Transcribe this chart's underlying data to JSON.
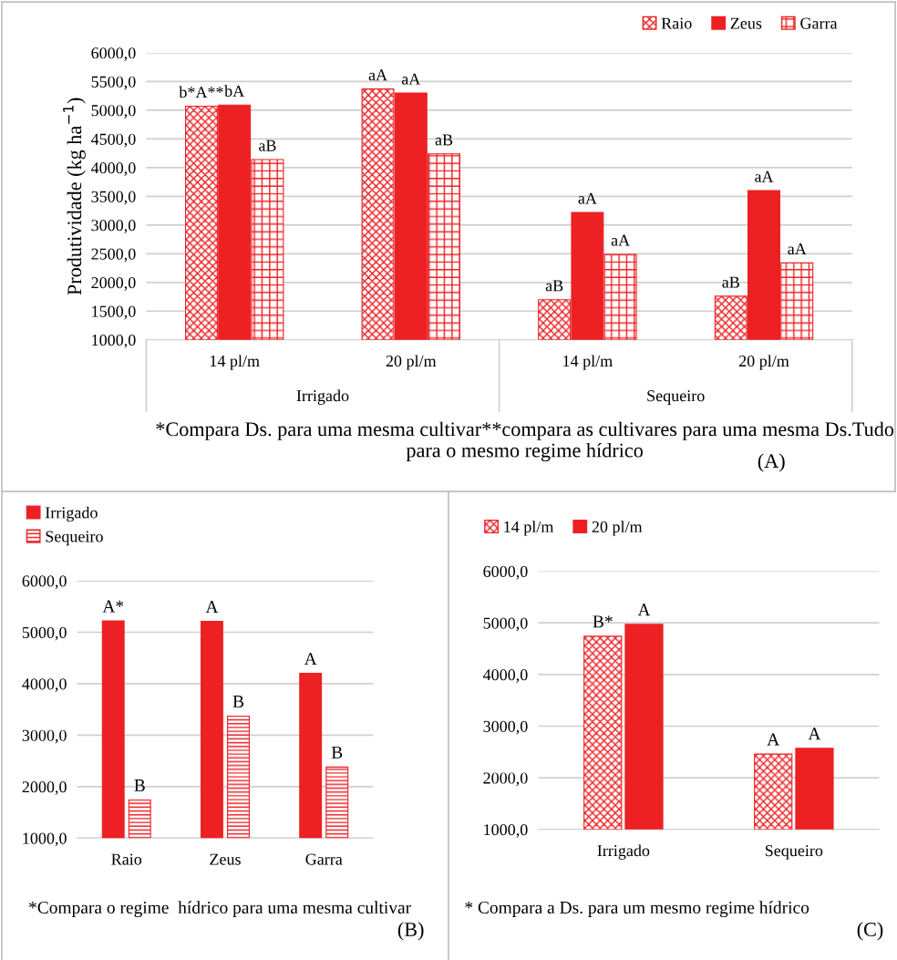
{
  "chart_data": [
    {
      "type": "bar",
      "ylabel": "Produtividade (kg ha$^{−1}$)",
      "categories": [
        "14 pl/m",
        "20 pl/m",
        "14 pl/m",
        "20 pl/m"
      ],
      "series": [
        {
          "name": "Raio",
          "color": "#ed2024",
          "values": [
            5070,
            5370,
            1700,
            1760
          ],
          "value_labels": [
            "b*A**",
            "aA",
            "aB",
            "aB"
          ]
        },
        {
          "name": "Zeus",
          "color": "#ed2024",
          "values": [
            5090,
            5300,
            3220,
            3600
          ],
          "value_labels": [
            "bA",
            "aA",
            "aA",
            "aA"
          ]
        },
        {
          "name": "Garra",
          "color": "#ed2024",
          "values": [
            4140,
            4240,
            2490,
            2340
          ],
          "value_labels": [
            "aB",
            "aB",
            "aA",
            "aA"
          ]
        }
      ],
      "ylim": [
        1000,
        6000
      ],
      "yticks": [
        {
          "value": 1000,
          "label": "1000,0"
        },
        {
          "value": 1500,
          "label": "1500,0"
        },
        {
          "value": 2000,
          "label": "2000,0"
        },
        {
          "value": 2500,
          "label": "2500,0"
        },
        {
          "value": 3000,
          "label": "3000,0"
        },
        {
          "value": 3500,
          "label": "3500,0"
        },
        {
          "value": 4000,
          "label": "4000,0"
        },
        {
          "value": 4500,
          "label": "4500,0"
        },
        {
          "value": 5000,
          "label": "5000,0"
        },
        {
          "value": 5500,
          "label": "5500,0"
        },
        {
          "value": 6000,
          "label": "6000,0"
        }
      ],
      "grid": "y",
      "legend": "top right",
      "annotations": [
        "Irrigado",
        "Sequeiro",
        "*Compara Ds. para uma mesma cultivar**compara as cultivares para uma mesma Ds.Tudo para o mesmo regime hídrico",
        "(A)"
      ]
    },
    {
      "type": "bar",
      "categories": [
        "Raio",
        "Zeus",
        "Garra"
      ],
      "series": [
        {
          "name": "Irrigado",
          "color": "#ed2024",
          "values": [
            5220,
            5210,
            4200
          ],
          "value_labels": [
            "A*",
            "A",
            "A"
          ]
        },
        {
          "name": "Sequeiro",
          "color": "#ed2024",
          "values": [
            1740,
            3370,
            2380
          ],
          "value_labels": [
            "B",
            "B",
            "B"
          ]
        }
      ],
      "ylim": [
        1000,
        6000
      ],
      "yticks": [
        {
          "value": 1000,
          "label": "1000,0"
        },
        {
          "value": 2000,
          "label": "2000,0"
        },
        {
          "value": 3000,
          "label": "3000,0"
        },
        {
          "value": 4000,
          "label": "4000,0"
        },
        {
          "value": 5000,
          "label": "5000,0"
        },
        {
          "value": 6000,
          "label": "6000,0"
        }
      ],
      "grid": "y",
      "legend": "top left",
      "annotations": [
        "*Compara o regime  hídrico para uma mesma cultivar",
        "(B)"
      ]
    },
    {
      "type": "bar",
      "categories": [
        "Irrigado",
        "Sequeiro"
      ],
      "series": [
        {
          "name": "14 pl/m",
          "color": "#ed2024",
          "values": [
            4740,
            2460
          ],
          "value_labels": [
            "B*",
            "A"
          ]
        },
        {
          "name": "20 pl/m",
          "color": "#ed2024",
          "values": [
            4970,
            2570
          ],
          "value_labels": [
            "A",
            "A"
          ]
        }
      ],
      "ylim": [
        1000,
        6000
      ],
      "yticks": [
        {
          "value": 1000,
          "label": "1000,0"
        },
        {
          "value": 2000,
          "label": "2000,0"
        },
        {
          "value": 3000,
          "label": "3000,0"
        },
        {
          "value": 4000,
          "label": "4000,0"
        },
        {
          "value": 5000,
          "label": "5000,0"
        },
        {
          "value": 6000,
          "label": "6000,0"
        }
      ],
      "grid": "y",
      "legend": "top left",
      "annotations": [
        "* Compara a Ds. para um mesmo regime hídrico",
        "(C)"
      ]
    }
  ]
}
